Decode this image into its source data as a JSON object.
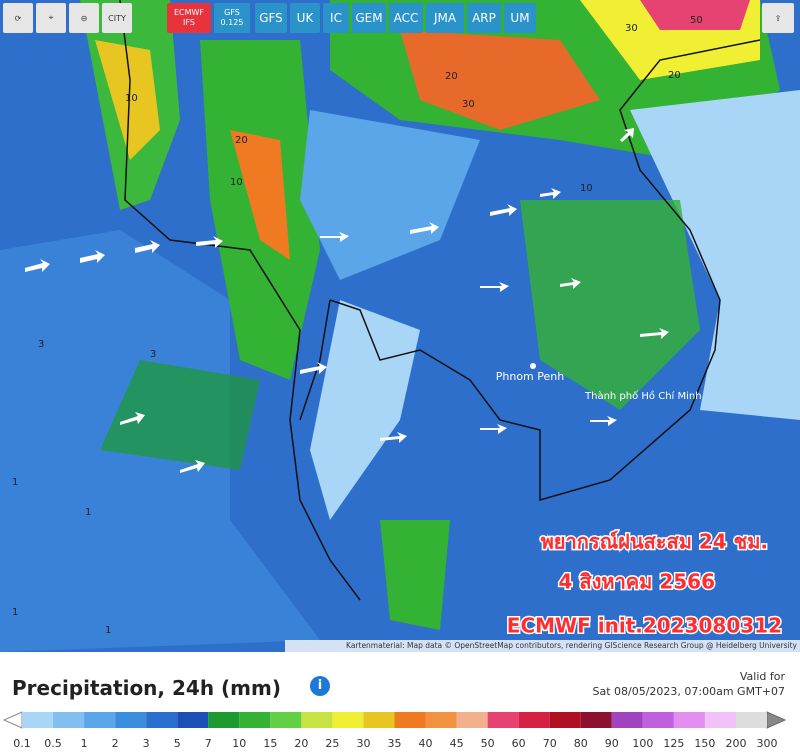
{
  "toolbar": {
    "city": "CITY",
    "models": [
      {
        "label": "ECMWF IFS",
        "active": true
      },
      {
        "label": "GFS 0.125",
        "active": false
      },
      {
        "label": "GFS",
        "active": false
      },
      {
        "label": "UK",
        "active": false
      },
      {
        "label": "IC",
        "active": false
      },
      {
        "label": "GEM",
        "active": false
      },
      {
        "label": "ACC",
        "active": false
      },
      {
        "label": "JMA",
        "active": false
      },
      {
        "label": "ARP",
        "active": false
      },
      {
        "label": "UM",
        "active": false
      }
    ]
  },
  "map": {
    "places": [
      "Phnom Penh",
      "Thành phố Hồ Chí Minh"
    ],
    "overlay": [
      "พยากรณ์ฝนสะสม 24 ชม.",
      "4 สิงหาคม 2566",
      "ECMWF init.2023080312"
    ],
    "attribution": "Kartenmaterial: Map data © OpenStreetMap contributors, rendering GIScience Research Group @ Heidelberg University",
    "contour_labels": [
      30,
      50,
      20,
      20,
      10,
      10,
      20,
      30,
      10,
      3,
      3,
      1,
      1,
      1,
      1
    ]
  },
  "legend": {
    "title": "Precipitation, 24h (mm)",
    "valid_label": "Valid for",
    "valid_time": "Sat 08/05/2023, 07:00am GMT+07",
    "ticks": [
      0.1,
      0.5,
      1,
      2,
      3,
      5,
      7,
      10,
      15,
      20,
      25,
      30,
      35,
      40,
      45,
      50,
      60,
      70,
      80,
      90,
      100,
      125,
      150,
      200,
      300
    ],
    "colors": [
      "#a9d6f7",
      "#82bff0",
      "#5aa6e8",
      "#3d8ddf",
      "#2a6fcf",
      "#1a4fb5",
      "#1b9a30",
      "#33b233",
      "#62d044",
      "#c6e243",
      "#f1ef34",
      "#e8c622",
      "#ef7a22",
      "#f19240",
      "#f2b08e",
      "#e64272",
      "#d52243",
      "#af1021",
      "#8e1030",
      "#a043bf",
      "#c160df",
      "#e28ff0",
      "#f1c1f7",
      "#dcdcdc"
    ]
  }
}
